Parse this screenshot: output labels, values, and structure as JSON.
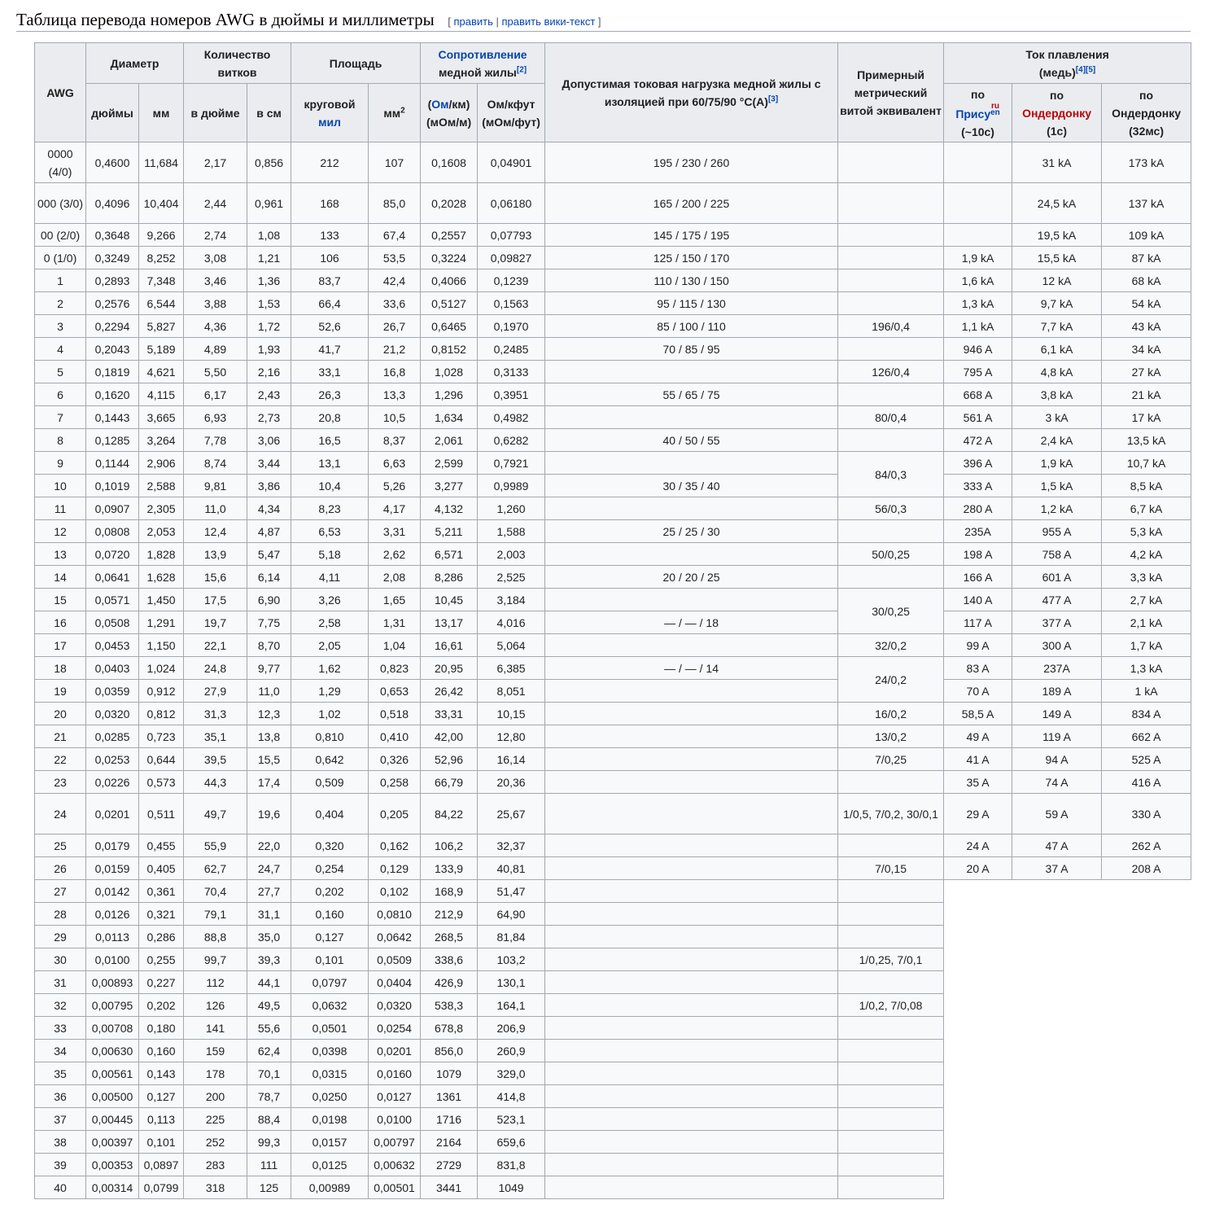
{
  "page": {
    "heading": "Таблица перевода номеров AWG в дюймы и миллиметры",
    "edit_open": "[",
    "edit_link": "править",
    "edit_sep": "|",
    "edit_wiki_link": "править вики-текст",
    "edit_close": "]"
  },
  "headers": {
    "awg": "AWG",
    "diameter": "Диаметр",
    "diameter_in": "дюймы",
    "diameter_mm": "мм",
    "turns": "Количество витков",
    "turns_in": "в дюйме",
    "turns_cm": "в см",
    "area": "Площадь",
    "area_circ": "круговой",
    "area_mil": "мил",
    "area_mm2": "мм",
    "area_mm2_sup": "2",
    "resistance_link": "Сопротивление",
    "resistance_text": "медной жилы",
    "resistance_ref": "[2]",
    "res_ohm_open": "(",
    "res_ohm_link": "Ом",
    "res_ohm_rest": "/км)",
    "res_ohm_sub": "(мОм/м)",
    "res_ohmft": "Ом/кфут",
    "res_ohmft_sub": "(мОм/фут)",
    "ampacity": "Допустимая токовая нагрузка медной жилы с изоляцией при 60/75/90 °С(А)",
    "ampacity_ref": "[3]",
    "metric": "Примерный метрический витой эквивалент",
    "fusing": "Ток плавления",
    "fusing_sub": "(медь)",
    "fusing_ref1": "[4]",
    "fusing_ref2": "[5]",
    "preece_by": "по",
    "preece_link": "Прису",
    "preece_ru": "ru",
    "preece_en": "en",
    "preece_time": "(~10с)",
    "onder_by": "по",
    "onder_link": "Ондердонку",
    "onder_time": "(1с)",
    "onder2_by": "по",
    "onder2_name": "Ондердонку",
    "onder2_time": "(32мс)"
  },
  "rows": [
    {
      "awg": "0000 (4/0)",
      "d_in": "0,4600",
      "d_mm": "11,684",
      "t_in": "2,17",
      "t_cm": "0,856",
      "kmil": "212",
      "mm2": "107",
      "ohm_km": "0,1608",
      "ohm_kft": "0,04901",
      "amp": "195 / 230 / 260",
      "metric": "",
      "preece": "",
      "onder1": "31 kA",
      "onder32": "173 kA"
    },
    {
      "awg": "000 (3/0)",
      "d_in": "0,4096",
      "d_mm": "10,404",
      "t_in": "2,44",
      "t_cm": "0,961",
      "kmil": "168",
      "mm2": "85,0",
      "ohm_km": "0,2028",
      "ohm_kft": "0,06180",
      "amp": "165 / 200 / 225",
      "metric": "",
      "preece": "",
      "onder1": "24,5 kA",
      "onder32": "137 kA"
    },
    {
      "awg": "00 (2/0)",
      "d_in": "0,3648",
      "d_mm": "9,266",
      "t_in": "2,74",
      "t_cm": "1,08",
      "kmil": "133",
      "mm2": "67,4",
      "ohm_km": "0,2557",
      "ohm_kft": "0,07793",
      "amp": "145 / 175 / 195",
      "metric": "",
      "preece": "",
      "onder1": "19,5 kA",
      "onder32": "109 kA"
    },
    {
      "awg": "0 (1/0)",
      "d_in": "0,3249",
      "d_mm": "8,252",
      "t_in": "3,08",
      "t_cm": "1,21",
      "kmil": "106",
      "mm2": "53,5",
      "ohm_km": "0,3224",
      "ohm_kft": "0,09827",
      "amp": "125 / 150 / 170",
      "metric": "",
      "preece": "1,9 kA",
      "onder1": "15,5 kA",
      "onder32": "87 kA"
    },
    {
      "awg": "1",
      "d_in": "0,2893",
      "d_mm": "7,348",
      "t_in": "3,46",
      "t_cm": "1,36",
      "kmil": "83,7",
      "mm2": "42,4",
      "ohm_km": "0,4066",
      "ohm_kft": "0,1239",
      "amp": "110 / 130 / 150",
      "metric": "",
      "preece": "1,6 kA",
      "onder1": "12 kA",
      "onder32": "68 kA"
    },
    {
      "awg": "2",
      "d_in": "0,2576",
      "d_mm": "6,544",
      "t_in": "3,88",
      "t_cm": "1,53",
      "kmil": "66,4",
      "mm2": "33,6",
      "ohm_km": "0,5127",
      "ohm_kft": "0,1563",
      "amp": "95 / 115 / 130",
      "metric": "",
      "preece": "1,3 kA",
      "onder1": "9,7 kA",
      "onder32": "54 kA"
    },
    {
      "awg": "3",
      "d_in": "0,2294",
      "d_mm": "5,827",
      "t_in": "4,36",
      "t_cm": "1,72",
      "kmil": "52,6",
      "mm2": "26,7",
      "ohm_km": "0,6465",
      "ohm_kft": "0,1970",
      "amp": "85 / 100 / 110",
      "metric": "196/0,4",
      "preece": "1,1 kA",
      "onder1": "7,7 kA",
      "onder32": "43 kA"
    },
    {
      "awg": "4",
      "d_in": "0,2043",
      "d_mm": "5,189",
      "t_in": "4,89",
      "t_cm": "1,93",
      "kmil": "41,7",
      "mm2": "21,2",
      "ohm_km": "0,8152",
      "ohm_kft": "0,2485",
      "amp": "70 / 85 / 95",
      "metric": "",
      "preece": "946 A",
      "onder1": "6,1 kA",
      "onder32": "34 kA"
    },
    {
      "awg": "5",
      "d_in": "0,1819",
      "d_mm": "4,621",
      "t_in": "5,50",
      "t_cm": "2,16",
      "kmil": "33,1",
      "mm2": "16,8",
      "ohm_km": "1,028",
      "ohm_kft": "0,3133",
      "amp": "",
      "metric": "126/0,4",
      "preece": "795 A",
      "onder1": "4,8 kA",
      "onder32": "27 kA"
    },
    {
      "awg": "6",
      "d_in": "0,1620",
      "d_mm": "4,115",
      "t_in": "6,17",
      "t_cm": "2,43",
      "kmil": "26,3",
      "mm2": "13,3",
      "ohm_km": "1,296",
      "ohm_kft": "0,3951",
      "amp": "55 / 65 / 75",
      "metric": "",
      "preece": "668 A",
      "onder1": "3,8 kA",
      "onder32": "21 kA"
    },
    {
      "awg": "7",
      "d_in": "0,1443",
      "d_mm": "3,665",
      "t_in": "6,93",
      "t_cm": "2,73",
      "kmil": "20,8",
      "mm2": "10,5",
      "ohm_km": "1,634",
      "ohm_kft": "0,4982",
      "amp": "",
      "metric": "80/0,4",
      "preece": "561 A",
      "onder1": "3 kA",
      "onder32": "17 kA"
    },
    {
      "awg": "8",
      "d_in": "0,1285",
      "d_mm": "3,264",
      "t_in": "7,78",
      "t_cm": "3,06",
      "kmil": "16,5",
      "mm2": "8,37",
      "ohm_km": "2,061",
      "ohm_kft": "0,6282",
      "amp": "40 / 50 / 55",
      "metric": "",
      "preece": "472 A",
      "onder1": "2,4 kA",
      "onder32": "13,5 kA"
    },
    {
      "awg": "9",
      "d_in": "0,1144",
      "d_mm": "2,906",
      "t_in": "8,74",
      "t_cm": "3,44",
      "kmil": "13,1",
      "mm2": "6,63",
      "ohm_km": "2,599",
      "ohm_kft": "0,7921",
      "amp": "",
      "metric": "84/0,3",
      "preece": "396 A",
      "onder1": "1,9 kA",
      "onder32": "10,7 kA"
    },
    {
      "awg": "10",
      "d_in": "0,1019",
      "d_mm": "2,588",
      "t_in": "9,81",
      "t_cm": "3,86",
      "kmil": "10,4",
      "mm2": "5,26",
      "ohm_km": "3,277",
      "ohm_kft": "0,9989",
      "amp": "30 / 35 / 40",
      "metric": null,
      "preece": "333 A",
      "onder1": "1,5 kA",
      "onder32": "8,5 kA"
    },
    {
      "awg": "11",
      "d_in": "0,0907",
      "d_mm": "2,305",
      "t_in": "11,0",
      "t_cm": "4,34",
      "kmil": "8,23",
      "mm2": "4,17",
      "ohm_km": "4,132",
      "ohm_kft": "1,260",
      "amp": "",
      "metric": "56/0,3",
      "preece": "280 A",
      "onder1": "1,2 kA",
      "onder32": "6,7 kA"
    },
    {
      "awg": "12",
      "d_in": "0,0808",
      "d_mm": "2,053",
      "t_in": "12,4",
      "t_cm": "4,87",
      "kmil": "6,53",
      "mm2": "3,31",
      "ohm_km": "5,211",
      "ohm_kft": "1,588",
      "amp": "25 / 25 / 30",
      "metric": "",
      "preece": "235A",
      "onder1": "955 A",
      "onder32": "5,3 kA"
    },
    {
      "awg": "13",
      "d_in": "0,0720",
      "d_mm": "1,828",
      "t_in": "13,9",
      "t_cm": "5,47",
      "kmil": "5,18",
      "mm2": "2,62",
      "ohm_km": "6,571",
      "ohm_kft": "2,003",
      "amp": "",
      "metric": "50/0,25",
      "preece": "198 A",
      "onder1": "758 A",
      "onder32": "4,2 kA"
    },
    {
      "awg": "14",
      "d_in": "0,0641",
      "d_mm": "1,628",
      "t_in": "15,6",
      "t_cm": "6,14",
      "kmil": "4,11",
      "mm2": "2,08",
      "ohm_km": "8,286",
      "ohm_kft": "2,525",
      "amp": "20 / 20 / 25",
      "metric": "",
      "preece": "166 A",
      "onder1": "601 A",
      "onder32": "3,3 kA"
    },
    {
      "awg": "15",
      "d_in": "0,0571",
      "d_mm": "1,450",
      "t_in": "17,5",
      "t_cm": "6,90",
      "kmil": "3,26",
      "mm2": "1,65",
      "ohm_km": "10,45",
      "ohm_kft": "3,184",
      "amp": "",
      "metric": "30/0,25",
      "preece": "140 A",
      "onder1": "477 A",
      "onder32": "2,7 kA"
    },
    {
      "awg": "16",
      "d_in": "0,0508",
      "d_mm": "1,291",
      "t_in": "19,7",
      "t_cm": "7,75",
      "kmil": "2,58",
      "mm2": "1,31",
      "ohm_km": "13,17",
      "ohm_kft": "4,016",
      "amp": "— / — / 18",
      "metric": null,
      "preece": "117 A",
      "onder1": "377 A",
      "onder32": "2,1 kA"
    },
    {
      "awg": "17",
      "d_in": "0,0453",
      "d_mm": "1,150",
      "t_in": "22,1",
      "t_cm": "8,70",
      "kmil": "2,05",
      "mm2": "1,04",
      "ohm_km": "16,61",
      "ohm_kft": "5,064",
      "amp": "",
      "metric": "32/0,2",
      "preece": "99 A",
      "onder1": "300 A",
      "onder32": "1,7 kA"
    },
    {
      "awg": "18",
      "d_in": "0,0403",
      "d_mm": "1,024",
      "t_in": "24,8",
      "t_cm": "9,77",
      "kmil": "1,62",
      "mm2": "0,823",
      "ohm_km": "20,95",
      "ohm_kft": "6,385",
      "amp": "— / — / 14",
      "metric": "24/0,2",
      "preece": "83 A",
      "onder1": "237A",
      "onder32": "1,3 kA"
    },
    {
      "awg": "19",
      "d_in": "0,0359",
      "d_mm": "0,912",
      "t_in": "27,9",
      "t_cm": "11,0",
      "kmil": "1,29",
      "mm2": "0,653",
      "ohm_km": "26,42",
      "ohm_kft": "8,051",
      "amp": "",
      "metric": null,
      "preece": "70 A",
      "onder1": "189 A",
      "onder32": "1 kA"
    },
    {
      "awg": "20",
      "d_in": "0,0320",
      "d_mm": "0,812",
      "t_in": "31,3",
      "t_cm": "12,3",
      "kmil": "1,02",
      "mm2": "0,518",
      "ohm_km": "33,31",
      "ohm_kft": "10,15",
      "amp": "",
      "metric": "16/0,2",
      "preece": "58,5 A",
      "onder1": "149 A",
      "onder32": "834 A"
    },
    {
      "awg": "21",
      "d_in": "0,0285",
      "d_mm": "0,723",
      "t_in": "35,1",
      "t_cm": "13,8",
      "kmil": "0,810",
      "mm2": "0,410",
      "ohm_km": "42,00",
      "ohm_kft": "12,80",
      "amp": "",
      "metric": "13/0,2",
      "preece": "49 A",
      "onder1": "119 A",
      "onder32": "662 A"
    },
    {
      "awg": "22",
      "d_in": "0,0253",
      "d_mm": "0,644",
      "t_in": "39,5",
      "t_cm": "15,5",
      "kmil": "0,642",
      "mm2": "0,326",
      "ohm_km": "52,96",
      "ohm_kft": "16,14",
      "amp": "",
      "metric": "7/0,25",
      "preece": "41 A",
      "onder1": "94 A",
      "onder32": "525 A"
    },
    {
      "awg": "23",
      "d_in": "0,0226",
      "d_mm": "0,573",
      "t_in": "44,3",
      "t_cm": "17,4",
      "kmil": "0,509",
      "mm2": "0,258",
      "ohm_km": "66,79",
      "ohm_kft": "20,36",
      "amp": "",
      "metric": "",
      "preece": "35 A",
      "onder1": "74 A",
      "onder32": "416 A"
    },
    {
      "awg": "24",
      "d_in": "0,0201",
      "d_mm": "0,511",
      "t_in": "49,7",
      "t_cm": "19,6",
      "kmil": "0,404",
      "mm2": "0,205",
      "ohm_km": "84,22",
      "ohm_kft": "25,67",
      "amp": "",
      "metric": "1/0,5, 7/0,2, 30/0,1",
      "preece": "29 A",
      "onder1": "59 A",
      "onder32": "330 A"
    },
    {
      "awg": "25",
      "d_in": "0,0179",
      "d_mm": "0,455",
      "t_in": "55,9",
      "t_cm": "22,0",
      "kmil": "0,320",
      "mm2": "0,162",
      "ohm_km": "106,2",
      "ohm_kft": "32,37",
      "amp": "",
      "metric": "",
      "preece": "24 A",
      "onder1": "47 A",
      "onder32": "262 A"
    },
    {
      "awg": "26",
      "d_in": "0,0159",
      "d_mm": "0,405",
      "t_in": "62,7",
      "t_cm": "24,7",
      "kmil": "0,254",
      "mm2": "0,129",
      "ohm_km": "133,9",
      "ohm_kft": "40,81",
      "amp": "",
      "metric": "7/0,15",
      "preece": "20 A",
      "onder1": "37 A",
      "onder32": "208 A"
    },
    {
      "awg": "27",
      "d_in": "0,0142",
      "d_mm": "0,361",
      "t_in": "70,4",
      "t_cm": "27,7",
      "kmil": "0,202",
      "mm2": "0,102",
      "ohm_km": "168,9",
      "ohm_kft": "51,47",
      "amp": "",
      "metric": ""
    },
    {
      "awg": "28",
      "d_in": "0,0126",
      "d_mm": "0,321",
      "t_in": "79,1",
      "t_cm": "31,1",
      "kmil": "0,160",
      "mm2": "0,0810",
      "ohm_km": "212,9",
      "ohm_kft": "64,90",
      "amp": "",
      "metric": ""
    },
    {
      "awg": "29",
      "d_in": "0,0113",
      "d_mm": "0,286",
      "t_in": "88,8",
      "t_cm": "35,0",
      "kmil": "0,127",
      "mm2": "0,0642",
      "ohm_km": "268,5",
      "ohm_kft": "81,84",
      "amp": "",
      "metric": ""
    },
    {
      "awg": "30",
      "d_in": "0,0100",
      "d_mm": "0,255",
      "t_in": "99,7",
      "t_cm": "39,3",
      "kmil": "0,101",
      "mm2": "0,0509",
      "ohm_km": "338,6",
      "ohm_kft": "103,2",
      "amp": "",
      "metric": "1/0,25, 7/0,1"
    },
    {
      "awg": "31",
      "d_in": "0,00893",
      "d_mm": "0,227",
      "t_in": "112",
      "t_cm": "44,1",
      "kmil": "0,0797",
      "mm2": "0,0404",
      "ohm_km": "426,9",
      "ohm_kft": "130,1",
      "amp": "",
      "metric": ""
    },
    {
      "awg": "32",
      "d_in": "0,00795",
      "d_mm": "0,202",
      "t_in": "126",
      "t_cm": "49,5",
      "kmil": "0,0632",
      "mm2": "0,0320",
      "ohm_km": "538,3",
      "ohm_kft": "164,1",
      "amp": "",
      "metric": "1/0,2, 7/0,08"
    },
    {
      "awg": "33",
      "d_in": "0,00708",
      "d_mm": "0,180",
      "t_in": "141",
      "t_cm": "55,6",
      "kmil": "0,0501",
      "mm2": "0,0254",
      "ohm_km": "678,8",
      "ohm_kft": "206,9",
      "amp": "",
      "metric": ""
    },
    {
      "awg": "34",
      "d_in": "0,00630",
      "d_mm": "0,160",
      "t_in": "159",
      "t_cm": "62,4",
      "kmil": "0,0398",
      "mm2": "0,0201",
      "ohm_km": "856,0",
      "ohm_kft": "260,9",
      "amp": "",
      "metric": ""
    },
    {
      "awg": "35",
      "d_in": "0,00561",
      "d_mm": "0,143",
      "t_in": "178",
      "t_cm": "70,1",
      "kmil": "0,0315",
      "mm2": "0,0160",
      "ohm_km": "1079",
      "ohm_kft": "329,0",
      "amp": "",
      "metric": ""
    },
    {
      "awg": "36",
      "d_in": "0,00500",
      "d_mm": "0,127",
      "t_in": "200",
      "t_cm": "78,7",
      "kmil": "0,0250",
      "mm2": "0,0127",
      "ohm_km": "1361",
      "ohm_kft": "414,8",
      "amp": "",
      "metric": ""
    },
    {
      "awg": "37",
      "d_in": "0,00445",
      "d_mm": "0,113",
      "t_in": "225",
      "t_cm": "88,4",
      "kmil": "0,0198",
      "mm2": "0,0100",
      "ohm_km": "1716",
      "ohm_kft": "523,1",
      "amp": "",
      "metric": ""
    },
    {
      "awg": "38",
      "d_in": "0,00397",
      "d_mm": "0,101",
      "t_in": "252",
      "t_cm": "99,3",
      "kmil": "0,0157",
      "mm2": "0,00797",
      "ohm_km": "2164",
      "ohm_kft": "659,6",
      "amp": "",
      "metric": ""
    },
    {
      "awg": "39",
      "d_in": "0,00353",
      "d_mm": "0,0897",
      "t_in": "283",
      "t_cm": "111",
      "kmil": "0,0125",
      "mm2": "0,00632",
      "ohm_km": "2729",
      "ohm_kft": "831,8",
      "amp": "",
      "metric": ""
    },
    {
      "awg": "40",
      "d_in": "0,00314",
      "d_mm": "0,0799",
      "t_in": "318",
      "t_cm": "125",
      "kmil": "0,00989",
      "mm2": "0,00501",
      "ohm_km": "3441",
      "ohm_kft": "1049",
      "amp": "",
      "metric": ""
    }
  ]
}
